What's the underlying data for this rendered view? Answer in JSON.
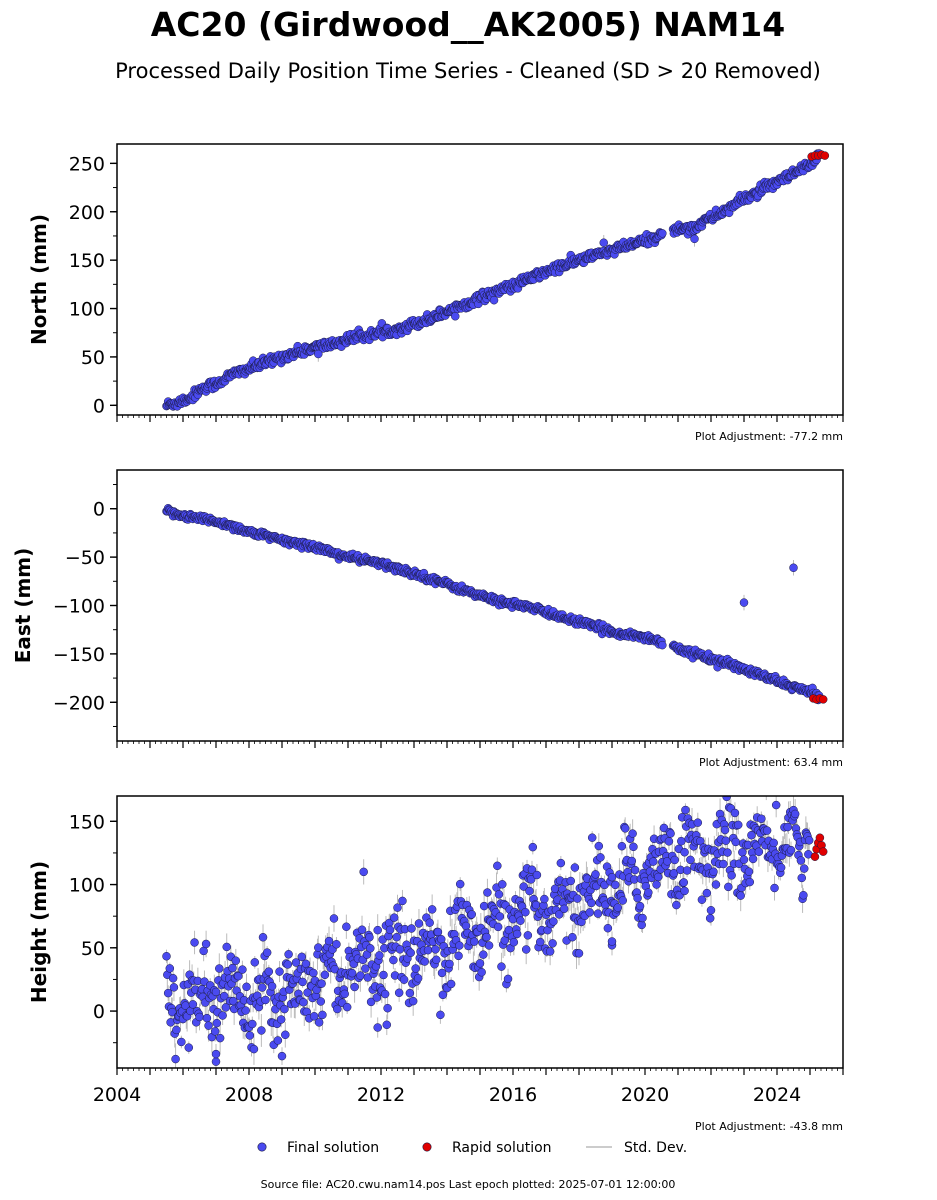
{
  "title": "AC20 (Girdwood__AK2005) NAM14",
  "subtitle": "Processed Daily Position Time Series - Cleaned (SD > 20 Removed)",
  "colors": {
    "final": "#4a4af0",
    "rapid": "#e00000",
    "stddev": "#bbbbbb",
    "edge": "#1a1a40"
  },
  "chart_data": [
    {
      "type": "scatter",
      "component": "north",
      "ylabel": "North (mm)",
      "ylim": [
        -10,
        270
      ],
      "yticks": [
        0,
        50,
        100,
        150,
        200,
        250
      ],
      "ytick_labels": [
        "0",
        "50",
        "100",
        "150",
        "200",
        "250"
      ],
      "xlim": [
        2004.0,
        2026.0
      ],
      "adjustment": "Plot Adjustment: -77.2 mm",
      "final_series": {
        "name": "Final solution",
        "x": [
          2005.5,
          2005.75,
          2006.0,
          2006.25,
          2006.5,
          2006.75,
          2007.0,
          2007.5,
          2008.0,
          2008.5,
          2009.0,
          2009.5,
          2010.0,
          2010.5,
          2011.0,
          2011.5,
          2012.0,
          2012.5,
          2013.0,
          2013.5,
          2014.0,
          2014.5,
          2015.0,
          2015.5,
          2016.0,
          2016.5,
          2017.0,
          2017.5,
          2018.0,
          2018.5,
          2019.0,
          2019.5,
          2020.0,
          2020.5,
          2020.9,
          2021.25,
          2021.5,
          2021.75,
          2022.0,
          2022.5,
          2023.0,
          2023.5,
          2024.0,
          2024.5,
          2025.0,
          2025.3
        ],
        "y": [
          0,
          2,
          5,
          8,
          16,
          20,
          22,
          32,
          38,
          44,
          50,
          55,
          60,
          63,
          68,
          72,
          75,
          79,
          84,
          90,
          97,
          104,
          111,
          118,
          123,
          131,
          138,
          144,
          150,
          155,
          160,
          165,
          170,
          176,
          181,
          184,
          183,
          190,
          193,
          203,
          213,
          222,
          230,
          239,
          248,
          256
        ],
        "scatter": 2.5
      },
      "rapid_series": {
        "name": "Rapid solution",
        "x": [
          2025.05,
          2025.15,
          2025.25,
          2025.35,
          2025.45
        ],
        "y": [
          257,
          258,
          258,
          259,
          258
        ]
      },
      "outliers": [
        {
          "x": 2021.5,
          "y": 172
        },
        {
          "x": 2018.75,
          "y": 168
        },
        {
          "x": 2010.1,
          "y": 53
        }
      ]
    },
    {
      "type": "scatter",
      "component": "east",
      "ylabel": "East (mm)",
      "ylim": [
        -240,
        40
      ],
      "yticks": [
        0,
        -50,
        -100,
        -150,
        -200
      ],
      "ytick_labels": [
        "0",
        "−50",
        "−100",
        "−150",
        "−200"
      ],
      "xlim": [
        2004.0,
        2026.0
      ],
      "adjustment": "Plot Adjustment: 63.4 mm",
      "final_series": {
        "name": "Final solution",
        "x": [
          2005.5,
          2006.0,
          2006.5,
          2007.0,
          2007.5,
          2008.0,
          2008.5,
          2009.0,
          2009.5,
          2010.0,
          2010.5,
          2011.0,
          2011.5,
          2012.0,
          2012.5,
          2013.0,
          2013.5,
          2014.0,
          2014.5,
          2015.0,
          2015.5,
          2016.0,
          2016.5,
          2017.0,
          2017.5,
          2018.0,
          2018.5,
          2019.0,
          2019.5,
          2020.0,
          2020.5,
          2020.9,
          2021.5,
          2022.0,
          2022.5,
          2023.0,
          2023.5,
          2024.0,
          2024.5,
          2025.0,
          2025.3
        ],
        "y": [
          -2,
          -7,
          -10,
          -13,
          -18,
          -24,
          -28,
          -33,
          -36,
          -39,
          -45,
          -50,
          -53,
          -57,
          -62,
          -67,
          -72,
          -78,
          -84,
          -90,
          -95,
          -98,
          -102,
          -107,
          -112,
          -117,
          -122,
          -127,
          -130,
          -133,
          -137,
          -143,
          -150,
          -155,
          -160,
          -166,
          -172,
          -178,
          -184,
          -190,
          -194
        ],
        "scatter": 1.8
      },
      "rapid_series": {
        "name": "Rapid solution",
        "x": [
          2025.1,
          2025.2,
          2025.3,
          2025.4
        ],
        "y": [
          -196,
          -197,
          -196,
          -197
        ]
      },
      "outliers": [
        {
          "x": 2023.0,
          "y": -97
        },
        {
          "x": 2024.5,
          "y": -61
        }
      ]
    },
    {
      "type": "scatter",
      "component": "height",
      "ylabel": "Height (mm)",
      "ylim": [
        -45,
        170
      ],
      "yticks": [
        0,
        50,
        100,
        150
      ],
      "ytick_labels": [
        "0",
        "50",
        "100",
        "150"
      ],
      "xlim": [
        2004.0,
        2026.0
      ],
      "xticks": [
        2004,
        2008,
        2012,
        2016,
        2020,
        2024
      ],
      "xtick_labels": [
        "2004",
        "2008",
        "2012",
        "2016",
        "2020",
        "2024"
      ],
      "adjustment": "Plot Adjustment: -43.8 mm",
      "final_series": {
        "name": "Final solution",
        "x": [
          2005.5,
          2006.0,
          2006.5,
          2007.0,
          2007.5,
          2008.0,
          2008.5,
          2009.0,
          2009.5,
          2010.0,
          2010.5,
          2011.0,
          2011.5,
          2012.0,
          2012.5,
          2013.0,
          2013.5,
          2014.0,
          2014.5,
          2015.0,
          2015.5,
          2016.0,
          2016.5,
          2017.0,
          2017.5,
          2018.0,
          2018.5,
          2019.0,
          2019.5,
          2020.0,
          2020.5,
          2021.0,
          2021.5,
          2022.0,
          2022.5,
          2023.0,
          2023.5,
          2024.0,
          2024.5,
          2025.0
        ],
        "y": [
          8,
          10,
          8,
          12,
          15,
          12,
          16,
          18,
          20,
          30,
          32,
          38,
          44,
          42,
          40,
          45,
          48,
          55,
          60,
          62,
          68,
          70,
          76,
          80,
          85,
          88,
          95,
          98,
          100,
          112,
          118,
          125,
          128,
          115,
          130,
          128,
          125,
          135,
          132,
          130
        ],
        "scatter": 16
      },
      "rapid_series": {
        "name": "Rapid solution",
        "x": [
          2025.15,
          2025.2,
          2025.25,
          2025.3,
          2025.35,
          2025.4
        ],
        "y": [
          122,
          128,
          133,
          137,
          131,
          126
        ]
      },
      "outliers": [
        {
          "x": 2007.0,
          "y": -40
        },
        {
          "x": 2007.0,
          "y": -34
        },
        {
          "x": 2011.9,
          "y": -13
        },
        {
          "x": 2019.0,
          "y": 52
        },
        {
          "x": 2019.0,
          "y": 55
        },
        {
          "x": 2021.2,
          "y": 95
        }
      ]
    }
  ],
  "legend": {
    "final_label": "Final solution",
    "rapid_label": "Rapid solution",
    "stddev_label": "Std. Dev."
  },
  "footer": "Source file: AC20.cwu.nam14.pos  Last epoch plotted: 2025-07-01 12:00:00"
}
